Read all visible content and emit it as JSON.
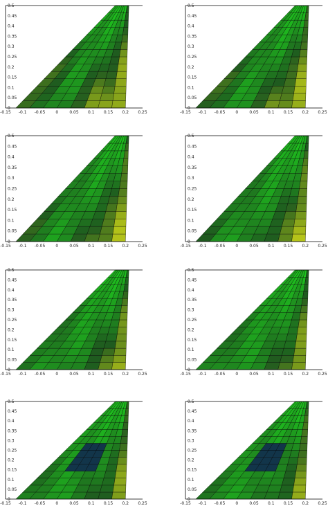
{
  "chart_data": [
    {
      "type": "heatmap",
      "panel": "row1-left",
      "xticks": [
        "-0.15",
        "-0.1",
        "-0.05",
        "0",
        "0.05",
        "0.1",
        "0.15",
        "0.2",
        "0.25"
      ],
      "yticks": [
        "0",
        "0.05",
        "0.1",
        "0.15",
        "0.2",
        "0.25",
        "0.3",
        "0.35",
        "0.4",
        "0.45",
        "0.5"
      ],
      "xlim": [
        -0.15,
        0.25
      ],
      "ylim": [
        0,
        0.5
      ],
      "colormap": [
        "#e6e617",
        "#1f5a1f",
        "#1ed11e"
      ]
    },
    {
      "type": "heatmap",
      "panel": "row1-right",
      "xticks": [
        "-0.15",
        "-0.1",
        "-0.05",
        "0",
        "0.05",
        "0.1",
        "0.15",
        "0.2",
        "0.25"
      ],
      "yticks": [
        "0",
        "0.05",
        "0.1",
        "0.15",
        "0.2",
        "0.25",
        "0.3",
        "0.35",
        "0.4",
        "0.45",
        "0.5"
      ],
      "xlim": [
        -0.15,
        0.25
      ],
      "ylim": [
        0,
        0.5
      ],
      "colormap": [
        "#e6e617",
        "#1f5a1f",
        "#1ed11e"
      ]
    },
    {
      "type": "heatmap",
      "panel": "row2-left",
      "xticks": [
        "-0.15",
        "-0.1",
        "-0.05",
        "0",
        "0.05",
        "0.1",
        "0.15",
        "0.2",
        "0.25"
      ],
      "yticks": [
        "0",
        "0.05",
        "0.1",
        "0.15",
        "0.2",
        "0.25",
        "0.3",
        "0.35",
        "0.4",
        "0.45",
        "0.5"
      ],
      "xlim": [
        -0.15,
        0.25
      ],
      "ylim": [
        0,
        0.5
      ],
      "colormap": [
        "#e6e617",
        "#1f5a1f",
        "#1ed11e"
      ]
    },
    {
      "type": "heatmap",
      "panel": "row2-right",
      "xticks": [
        "-0.15",
        "-0.1",
        "-0.05",
        "0",
        "0.05",
        "0.1",
        "0.15",
        "0.2",
        "0.25"
      ],
      "yticks": [
        "0",
        "0.05",
        "0.1",
        "0.15",
        "0.2",
        "0.25",
        "0.3",
        "0.35",
        "0.4",
        "0.45",
        "0.5"
      ],
      "xlim": [
        -0.15,
        0.25
      ],
      "ylim": [
        0,
        0.5
      ],
      "colormap": [
        "#e6e617",
        "#1f5a1f",
        "#1ed11e"
      ]
    },
    {
      "type": "heatmap",
      "panel": "row3-left",
      "xticks": [
        "-0.15",
        "-0.1",
        "-0.05",
        "0",
        "0.05",
        "0.1",
        "0.15",
        "0.2",
        "0.25"
      ],
      "yticks": [
        "0",
        "0.05",
        "0.1",
        "0.15",
        "0.2",
        "0.25",
        "0.3",
        "0.35",
        "0.4",
        "0.45",
        "0.5"
      ],
      "xlim": [
        -0.15,
        0.25
      ],
      "ylim": [
        0,
        0.5
      ],
      "colormap": [
        "#e6e617",
        "#1f5a1f",
        "#1ed11e"
      ]
    },
    {
      "type": "heatmap",
      "panel": "row3-right",
      "xticks": [
        "-0.15",
        "-0.1",
        "-0.05",
        "0",
        "0.05",
        "0.1",
        "0.15",
        "0.2",
        "0.25"
      ],
      "yticks": [
        "0",
        "0.05",
        "0.1",
        "0.15",
        "0.2",
        "0.25",
        "0.3",
        "0.35",
        "0.4",
        "0.45",
        "0.5"
      ],
      "xlim": [
        -0.15,
        0.25
      ],
      "ylim": [
        0,
        0.5
      ],
      "colormap": [
        "#e6e617",
        "#1f5a1f",
        "#1ed11e"
      ]
    },
    {
      "type": "heatmap",
      "panel": "row4-left",
      "xticks": [
        "-0.15",
        "-0.1",
        "-0.05",
        "0",
        "0.05",
        "0.1",
        "0.15",
        "0.2",
        "0.25"
      ],
      "yticks": [
        "0",
        "0.05",
        "0.1",
        "0.15",
        "0.2",
        "0.25",
        "0.3",
        "0.35",
        "0.4",
        "0.45",
        "0.5"
      ],
      "xlim": [
        -0.15,
        0.25
      ],
      "ylim": [
        0,
        0.5
      ],
      "colormap": [
        "#e6e617",
        "#1f5a1f",
        "#1ed11e",
        "#12354a"
      ]
    },
    {
      "type": "heatmap",
      "panel": "row4-right",
      "xticks": [
        "-0.15",
        "-0.1",
        "-0.05",
        "0",
        "0.05",
        "0.1",
        "0.15",
        "0.2",
        "0.25"
      ],
      "yticks": [
        "0",
        "0.05",
        "0.1",
        "0.15",
        "0.2",
        "0.25",
        "0.3",
        "0.35",
        "0.4",
        "0.45",
        "0.5"
      ],
      "xlim": [
        -0.15,
        0.25
      ],
      "ylim": [
        0,
        0.5
      ],
      "colormap": [
        "#e6e617",
        "#1f5a1f",
        "#1ed11e",
        "#12354a"
      ]
    }
  ]
}
